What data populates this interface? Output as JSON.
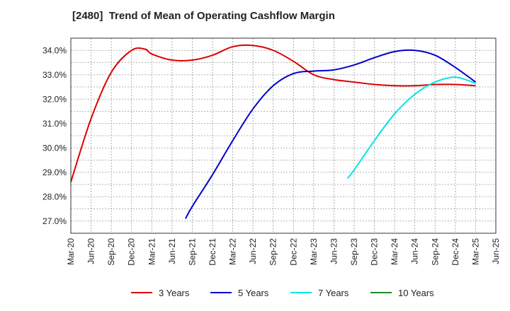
{
  "chart_data": {
    "type": "line",
    "title": "[2480]  Trend of Mean of Operating Cashflow Margin",
    "xlabel": "",
    "ylabel": "",
    "x_ticks": [
      "Mar-20",
      "Jun-20",
      "Sep-20",
      "Dec-20",
      "Mar-21",
      "Jun-21",
      "Sep-21",
      "Dec-21",
      "Mar-22",
      "Jun-22",
      "Sep-22",
      "Dec-22",
      "Mar-23",
      "Jun-23",
      "Sep-23",
      "Dec-23",
      "Mar-24",
      "Jun-24",
      "Sep-24",
      "Dec-24",
      "Mar-25",
      "Jun-25"
    ],
    "y_ticks": [
      "27.0%",
      "28.0%",
      "29.0%",
      "30.0%",
      "31.0%",
      "32.0%",
      "33.0%",
      "34.0%"
    ],
    "ylim": [
      26.5,
      34.5
    ],
    "grid": true,
    "legend_position": "bottom",
    "series": [
      {
        "name": "3 Years",
        "color": "#dd0000",
        "x": [
          "Mar-20",
          "Jun-20",
          "Sep-20",
          "Dec-20",
          "Feb-21",
          "Mar-21",
          "Jun-21",
          "Sep-21",
          "Dec-21",
          "Mar-22",
          "Jun-22",
          "Sep-22",
          "Dec-22",
          "Mar-23",
          "Jun-23",
          "Sep-23",
          "Dec-23",
          "Mar-24",
          "Jun-24",
          "Sep-24",
          "Dec-24",
          "Mar-25"
        ],
        "values": [
          28.6,
          31.2,
          33.1,
          34.0,
          34.05,
          33.85,
          33.6,
          33.6,
          33.8,
          34.15,
          34.2,
          34.0,
          33.55,
          33.0,
          32.8,
          32.7,
          32.6,
          32.55,
          32.55,
          32.6,
          32.6,
          32.55
        ]
      },
      {
        "name": "5 Years",
        "color": "#0000cc",
        "x": [
          "Aug-21",
          "Sep-21",
          "Dec-21",
          "Mar-22",
          "Jun-22",
          "Sep-22",
          "Dec-22",
          "Mar-23",
          "Jun-23",
          "Sep-23",
          "Dec-23",
          "Mar-24",
          "Jun-24",
          "Sep-24",
          "Dec-24",
          "Mar-25"
        ],
        "values": [
          27.1,
          27.6,
          28.9,
          30.3,
          31.6,
          32.55,
          33.05,
          33.15,
          33.2,
          33.4,
          33.7,
          33.95,
          34.0,
          33.8,
          33.3,
          32.7
        ]
      },
      {
        "name": "7 Years",
        "color": "#00e5e5",
        "x": [
          "Aug-23",
          "Sep-23",
          "Dec-23",
          "Mar-24",
          "Jun-24",
          "Sep-24",
          "Dec-24",
          "Mar-25"
        ],
        "values": [
          28.75,
          29.1,
          30.3,
          31.4,
          32.2,
          32.7,
          32.9,
          32.65
        ]
      },
      {
        "name": "10 Years",
        "color": "#228b22",
        "x": [],
        "values": []
      }
    ]
  }
}
